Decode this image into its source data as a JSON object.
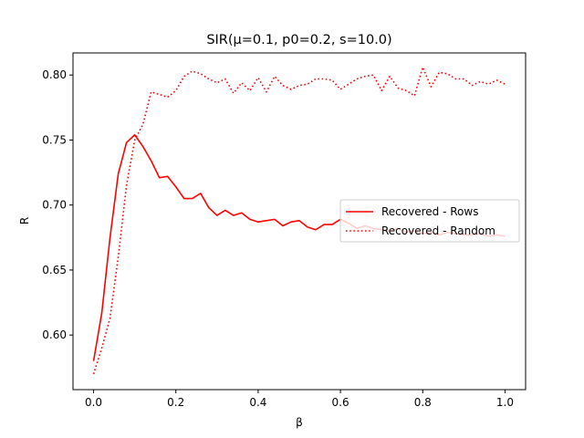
{
  "chart_data": {
    "type": "line",
    "title": "SIR(μ=0.1, p0=0.2, s=10.0)",
    "xlabel": "β",
    "ylabel": "R",
    "xlim": [
      -0.05,
      1.05
    ],
    "ylim": [
      0.558,
      0.817
    ],
    "xticks": [
      0.0,
      0.2,
      0.4,
      0.6,
      0.8,
      1.0
    ],
    "xtick_labels": [
      "0.0",
      "0.2",
      "0.4",
      "0.6",
      "0.8",
      "1.0"
    ],
    "yticks": [
      0.6,
      0.65,
      0.7,
      0.75,
      0.8
    ],
    "ytick_labels": [
      "0.60",
      "0.65",
      "0.70",
      "0.75",
      "0.80"
    ],
    "grid": false,
    "legend_position": "center-right",
    "series": [
      {
        "name": "Recovered - Rows",
        "color": "#ff0000",
        "style": "solid",
        "x": [
          0.0,
          0.02,
          0.04,
          0.06,
          0.08,
          0.1,
          0.12,
          0.14,
          0.16,
          0.18,
          0.2,
          0.22,
          0.24,
          0.26,
          0.28,
          0.3,
          0.32,
          0.34,
          0.36,
          0.38,
          0.4,
          0.42,
          0.44,
          0.46,
          0.48,
          0.5,
          0.52,
          0.54,
          0.56,
          0.58,
          0.6,
          0.62,
          0.64,
          0.66,
          0.68,
          0.7,
          0.72,
          0.74,
          0.76,
          0.78,
          0.8,
          0.82,
          0.84,
          0.86,
          0.88,
          0.9,
          0.92,
          0.94,
          0.96,
          0.98,
          1.0
        ],
        "y": [
          0.58,
          0.617,
          0.675,
          0.724,
          0.748,
          0.754,
          0.745,
          0.734,
          0.721,
          0.722,
          0.714,
          0.705,
          0.705,
          0.709,
          0.698,
          0.692,
          0.696,
          0.692,
          0.694,
          0.689,
          0.687,
          0.688,
          0.689,
          0.684,
          0.687,
          0.688,
          0.683,
          0.681,
          0.685,
          0.685,
          0.689,
          0.686,
          0.682,
          0.684,
          0.682,
          0.681,
          0.68,
          0.682,
          0.679,
          0.68,
          0.678,
          0.679,
          0.677,
          0.679,
          0.678,
          0.677,
          0.677,
          0.678,
          0.676,
          0.677,
          0.676
        ]
      },
      {
        "name": "Recovered - Random",
        "color": "#ff0000",
        "style": "dotted",
        "x": [
          0.0,
          0.02,
          0.04,
          0.06,
          0.08,
          0.1,
          0.12,
          0.14,
          0.16,
          0.18,
          0.2,
          0.22,
          0.24,
          0.26,
          0.28,
          0.3,
          0.32,
          0.34,
          0.36,
          0.38,
          0.4,
          0.42,
          0.44,
          0.46,
          0.48,
          0.5,
          0.52,
          0.54,
          0.56,
          0.58,
          0.6,
          0.62,
          0.64,
          0.66,
          0.68,
          0.7,
          0.72,
          0.74,
          0.76,
          0.78,
          0.8,
          0.82,
          0.84,
          0.86,
          0.88,
          0.9,
          0.92,
          0.94,
          0.96,
          0.98,
          1.0
        ],
        "y": [
          0.57,
          0.59,
          0.613,
          0.66,
          0.715,
          0.75,
          0.762,
          0.787,
          0.785,
          0.783,
          0.788,
          0.799,
          0.803,
          0.801,
          0.797,
          0.794,
          0.797,
          0.786,
          0.794,
          0.788,
          0.798,
          0.787,
          0.799,
          0.792,
          0.789,
          0.792,
          0.793,
          0.797,
          0.797,
          0.796,
          0.789,
          0.793,
          0.797,
          0.799,
          0.8,
          0.788,
          0.799,
          0.79,
          0.788,
          0.784,
          0.806,
          0.791,
          0.802,
          0.801,
          0.797,
          0.797,
          0.792,
          0.795,
          0.793,
          0.796,
          0.793
        ]
      }
    ]
  }
}
